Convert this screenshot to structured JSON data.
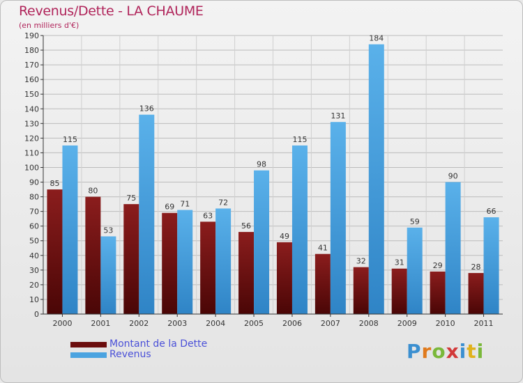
{
  "chart_data": {
    "type": "bar",
    "title": "Revenus/Dette - LA CHAUME",
    "subtitle": "(en milliers d'€)",
    "categories": [
      "2000",
      "2001",
      "2002",
      "2003",
      "2004",
      "2005",
      "2006",
      "2007",
      "2008",
      "2009",
      "2010",
      "2011"
    ],
    "series": [
      {
        "name": "Montant de la Dette",
        "color": "#7a1212",
        "values": [
          85,
          80,
          75,
          69,
          63,
          56,
          49,
          41,
          32,
          31,
          29,
          28
        ]
      },
      {
        "name": "Revenus",
        "color": "#4aa3e0",
        "values": [
          115,
          53,
          136,
          71,
          72,
          98,
          115,
          131,
          184,
          59,
          90,
          66
        ]
      }
    ],
    "ylim": [
      0,
      190
    ],
    "ytick_step": 10,
    "grid": true,
    "legend_position": "bottom-left"
  },
  "logo": {
    "text": "Proxiti",
    "letters": [
      "P",
      "r",
      "o",
      "x",
      "i",
      "t",
      "i"
    ]
  }
}
